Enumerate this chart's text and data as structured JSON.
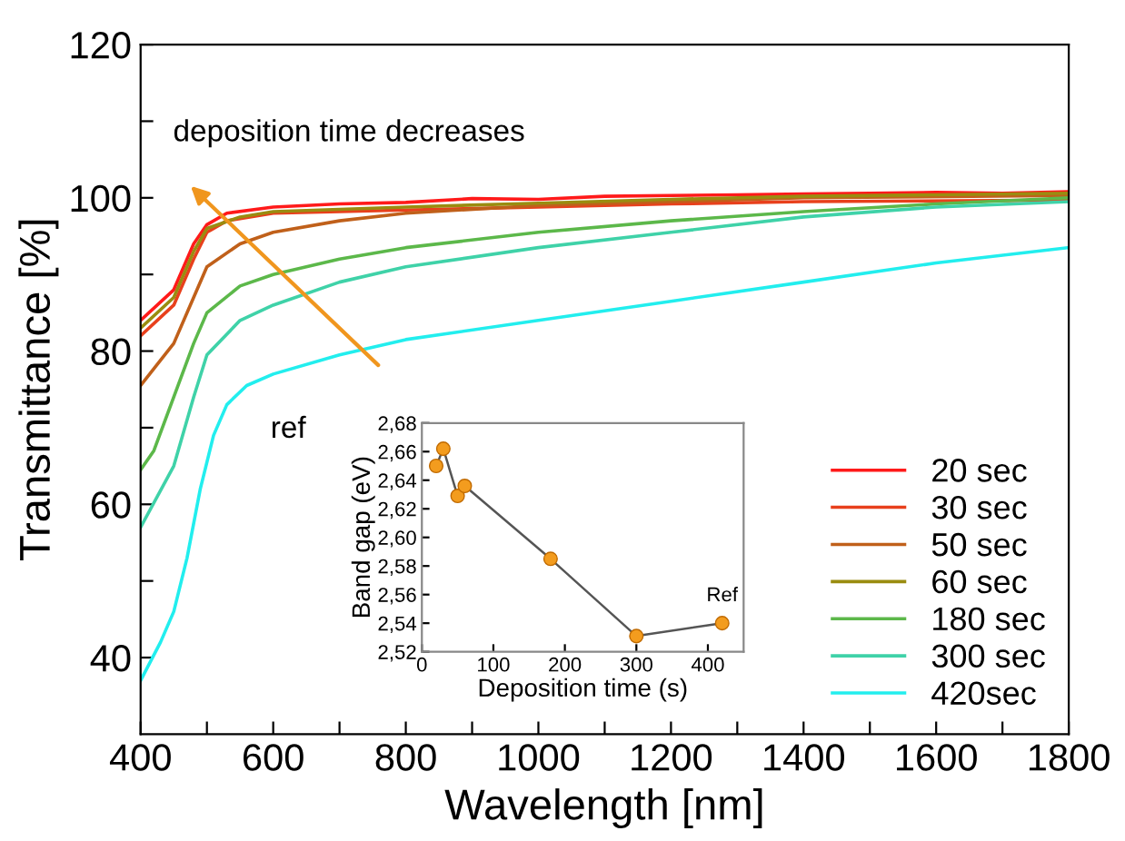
{
  "chart_data": [
    {
      "type": "line",
      "xlabel": "Wavelength [nm]",
      "ylabel": "Transmittance [%]",
      "xlim": [
        400,
        1800
      ],
      "ylim": [
        30,
        120
      ],
      "xticks": [
        400,
        {
          "value": 500,
          "label": null
        },
        600,
        {
          "value": 700,
          "label": null
        },
        800,
        {
          "value": 900,
          "label": null
        },
        1000,
        {
          "value": 1100,
          "label": null
        },
        1200,
        {
          "value": 1300,
          "label": null
        },
        1400,
        {
          "value": 1500,
          "label": null
        },
        1600,
        {
          "value": 1700,
          "label": null
        },
        1800
      ],
      "yticks": [
        40,
        {
          "value": 50,
          "label": null
        },
        60,
        {
          "value": 70,
          "label": null
        },
        80,
        {
          "value": 90,
          "label": null
        },
        100,
        {
          "value": 110,
          "label": null
        },
        120
      ],
      "grid": false,
      "legend": "bottom right",
      "marker": "none",
      "line_style": "solid",
      "annotations": [
        "deposition time decreases",
        "ref"
      ],
      "series": [
        {
          "name": "20 sec",
          "color": "#ff1a1a",
          "x": [
            400,
            450,
            480,
            500,
            530,
            600,
            700,
            800,
            900,
            1000,
            1100,
            1200,
            1300,
            1400,
            1500,
            1600,
            1700,
            1800
          ],
          "values": [
            84,
            88,
            94,
            96.5,
            98,
            98.8,
            99.2,
            99.4,
            99.9,
            99.8,
            100.2,
            100.3,
            100.4,
            100.5,
            100.6,
            100.7,
            100.6,
            100.8
          ]
        },
        {
          "name": "30 sec",
          "color": "#e8401c",
          "x": [
            400,
            450,
            480,
            500,
            530,
            600,
            800,
            1000,
            1200,
            1400,
            1800
          ],
          "values": [
            82,
            86,
            92,
            95.5,
            97,
            98,
            98.4,
            98.8,
            99.2,
            99.5,
            99.7
          ]
        },
        {
          "name": "50 sec",
          "color": "#c0601a",
          "x": [
            400,
            450,
            480,
            500,
            550,
            600,
            700,
            800,
            1000,
            1200,
            1400,
            1800
          ],
          "values": [
            75.5,
            81,
            87,
            91,
            94,
            95.5,
            97,
            98,
            99,
            99.5,
            100,
            100.3
          ]
        },
        {
          "name": "60 sec",
          "color": "#9a8c10",
          "x": [
            400,
            450,
            480,
            500,
            550,
            600,
            800,
            1000,
            1200,
            1400,
            1600,
            1800
          ],
          "values": [
            83,
            87,
            93,
            96,
            97.5,
            98.2,
            98.8,
            99.3,
            99.8,
            100.2,
            100.4,
            100.6
          ]
        },
        {
          "name": "180 sec",
          "color": "#5cb84a",
          "x": [
            400,
            420,
            450,
            480,
            500,
            550,
            600,
            700,
            800,
            1000,
            1200,
            1400,
            1600,
            1800
          ],
          "values": [
            64.5,
            67,
            74,
            81,
            85,
            88.5,
            90,
            92,
            93.5,
            95.5,
            97,
            98.2,
            99.2,
            100
          ]
        },
        {
          "name": "300 sec",
          "color": "#3fd2a8",
          "x": [
            400,
            450,
            480,
            500,
            550,
            600,
            700,
            800,
            1000,
            1200,
            1400,
            1600,
            1800
          ],
          "values": [
            57,
            65,
            74,
            79.5,
            84,
            86,
            89,
            91,
            93.5,
            95.5,
            97.5,
            98.8,
            99.5
          ]
        },
        {
          "name": "420sec",
          "color": "#22eeee",
          "x": [
            400,
            430,
            450,
            470,
            490,
            510,
            530,
            560,
            600,
            700,
            800,
            1000,
            1200,
            1400,
            1600,
            1800
          ],
          "values": [
            37,
            42,
            46,
            53,
            62,
            69,
            73,
            75.5,
            77,
            79.5,
            81.5,
            84,
            86.5,
            89,
            91.5,
            93.5
          ]
        }
      ]
    },
    {
      "type": "line",
      "xlabel": "Deposition time (s)",
      "ylabel": "Band gap (eV)",
      "xlim": [
        0,
        450
      ],
      "ylim": [
        2.52,
        2.68
      ],
      "xticks": [
        0,
        100,
        200,
        300,
        400
      ],
      "yticks": [
        {
          "value": 2.52,
          "label": "2,52"
        },
        {
          "value": 2.54,
          "label": "2,54"
        },
        {
          "value": 2.56,
          "label": "2,56"
        },
        {
          "value": 2.58,
          "label": "2,58"
        },
        {
          "value": 2.6,
          "label": "2,60"
        },
        {
          "value": 2.62,
          "label": "2,62"
        },
        {
          "value": 2.64,
          "label": "2,64"
        },
        {
          "value": 2.66,
          "label": "2,66"
        },
        {
          "value": 2.68,
          "label": "2,68"
        }
      ],
      "grid": false,
      "legend": false,
      "annotations": [
        {
          "text": "Ref",
          "x": 420,
          "y": 2.54
        }
      ],
      "series": [
        {
          "type": "line",
          "color": "#555555",
          "marker": "none",
          "x": [
            20,
            30,
            50,
            60,
            180,
            300,
            420
          ],
          "values": [
            2.65,
            2.662,
            2.629,
            2.636,
            2.585,
            2.531,
            2.54
          ]
        },
        {
          "type": "scatter",
          "color": "#f39c1e",
          "marker": "circle",
          "x": [
            20,
            30,
            50,
            60,
            180,
            300,
            420
          ],
          "values": [
            2.65,
            2.662,
            2.629,
            2.636,
            2.585,
            2.531,
            2.54
          ]
        }
      ]
    }
  ]
}
